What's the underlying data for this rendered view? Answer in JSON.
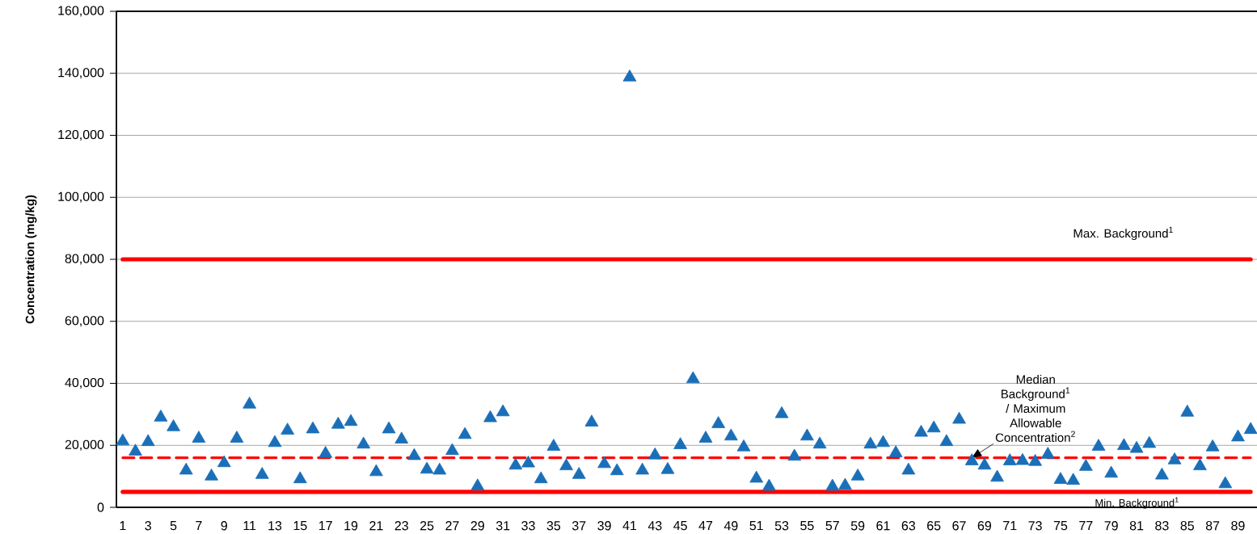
{
  "chart_data": {
    "type": "scatter",
    "ylabel": "Concentration (mg/kg)",
    "categories": [
      "1",
      null,
      "3",
      null,
      "5",
      null,
      "7",
      null,
      "9",
      null,
      "11",
      null,
      "13",
      null,
      "15",
      null,
      "17",
      null,
      "19",
      null,
      "21",
      null,
      "23",
      null,
      "25",
      null,
      "27",
      null,
      "29",
      null,
      "31",
      null,
      "33",
      null,
      "35",
      null,
      "37",
      null,
      "39",
      null,
      "41",
      null,
      "43",
      null,
      "45",
      null,
      "47",
      null,
      "49",
      null,
      "51",
      null,
      "53",
      null,
      "55",
      null,
      "57",
      null,
      "59",
      null,
      "61",
      null,
      "63",
      null,
      "65",
      null,
      "67",
      null,
      "69",
      null,
      "71",
      null,
      "73",
      null,
      "75",
      null,
      "77",
      null,
      "79",
      null,
      "81",
      null,
      "83",
      null,
      "85",
      null,
      "87",
      null,
      "89",
      null
    ],
    "values": [
      21300,
      18000,
      21100,
      29000,
      25900,
      11900,
      22200,
      10000,
      14300,
      22200,
      33200,
      10500,
      20800,
      24800,
      9100,
      25200,
      17300,
      26700,
      27600,
      20300,
      11400,
      25200,
      21900,
      16600,
      12200,
      11900,
      18200,
      23400,
      6800,
      28800,
      30700,
      13500,
      14200,
      9100,
      19600,
      13300,
      10500,
      27400,
      14000,
      11700,
      138700,
      11900,
      16800,
      12100,
      20100,
      41400,
      22200,
      26900,
      22900,
      19400,
      9300,
      6700,
      30100,
      16400,
      22900,
      20300,
      6700,
      7000,
      10000,
      20300,
      20800,
      17500,
      11900,
      24100,
      25500,
      21100,
      28300,
      14900,
      13500,
      9600,
      14900,
      15000,
      14700,
      17000,
      8900,
      8600,
      13100,
      19600,
      10900,
      19800,
      18900,
      20500,
      10300,
      15200,
      30600,
      13300,
      19400,
      7500,
      22600,
      25000
    ],
    "color": "#1a6fb8",
    "marker": "triangle",
    "ylim": [
      0,
      160000
    ],
    "yticks": [
      {
        "value": 0,
        "label": "0"
      },
      {
        "value": 20000,
        "label": "20,000"
      },
      {
        "value": 40000,
        "label": "40,000"
      },
      {
        "value": 60000,
        "label": "60,000"
      },
      {
        "value": 80000,
        "label": "80,000"
      },
      {
        "value": 100000,
        "label": "100,000"
      },
      {
        "value": 120000,
        "label": "120,000"
      },
      {
        "value": 140000,
        "label": "140,000"
      },
      {
        "value": 160000,
        "label": "160,000"
      }
    ],
    "grid": "y",
    "ref_lines": [
      {
        "axis": "y",
        "value": 80000,
        "label": "Max. Background$^{1}$",
        "color": "#ff0000",
        "line_style": "solid"
      },
      {
        "axis": "y",
        "value": 16000,
        "label": "Median Background$^{1}$ / Maximum Allowable Concentration$^{2}$",
        "color": "#ff0000",
        "line_style": "dashed"
      },
      {
        "axis": "y",
        "value": 5000,
        "label": "Min. Background$^{1}$",
        "color": "#ff0000",
        "line_style": "solid"
      }
    ]
  }
}
